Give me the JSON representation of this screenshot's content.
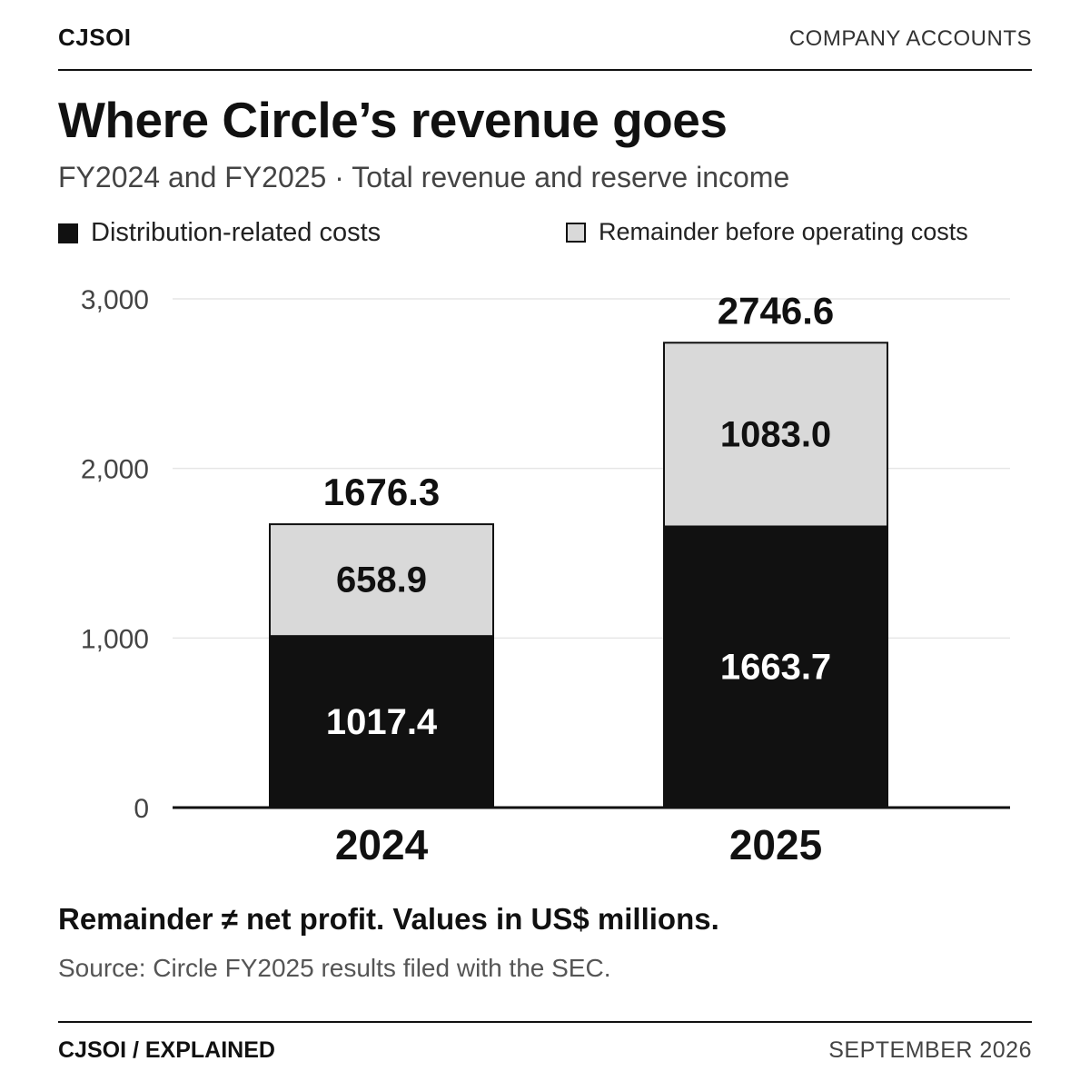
{
  "header": {
    "brand": "CJSOI",
    "section": "COMPANY ACCOUNTS"
  },
  "footer": {
    "left": "CJSOI / EXPLAINED",
    "right": "SEPTEMBER 2026"
  },
  "colors": {
    "distribution": "#111111",
    "remainder": "#d9d9d9",
    "grid": "#e6e6e6",
    "axis": "#111111"
  },
  "chart_data": {
    "type": "bar",
    "stacked": true,
    "title": "Where Circle’s revenue goes",
    "subtitle": "FY2024 and FY2025 · Total revenue and reserve income",
    "categories": [
      "2024",
      "2025"
    ],
    "series": [
      {
        "name": "Distribution-related costs",
        "values": [
          1017.4,
          1663.7
        ],
        "labels": [
          "1017.4",
          "1663.7"
        ]
      },
      {
        "name": "Remainder before operating costs",
        "values": [
          658.9,
          1083.0
        ],
        "labels": [
          "658.9",
          "1083.0"
        ]
      }
    ],
    "totals": [
      1676.3,
      2746.6
    ],
    "total_labels": [
      "1676.3",
      "2746.6"
    ],
    "ylim": [
      0,
      3000
    ],
    "yticks": [
      0,
      1000,
      2000,
      3000
    ],
    "ytick_labels": [
      "0",
      "1,000",
      "2,000",
      "3,000"
    ],
    "grid": true,
    "legend_position": "top",
    "xlabel": "",
    "ylabel": "",
    "note": "Remainder ≠ net profit. Values in US$ millions.",
    "source": "Source: Circle FY2025 results filed with the SEC."
  }
}
